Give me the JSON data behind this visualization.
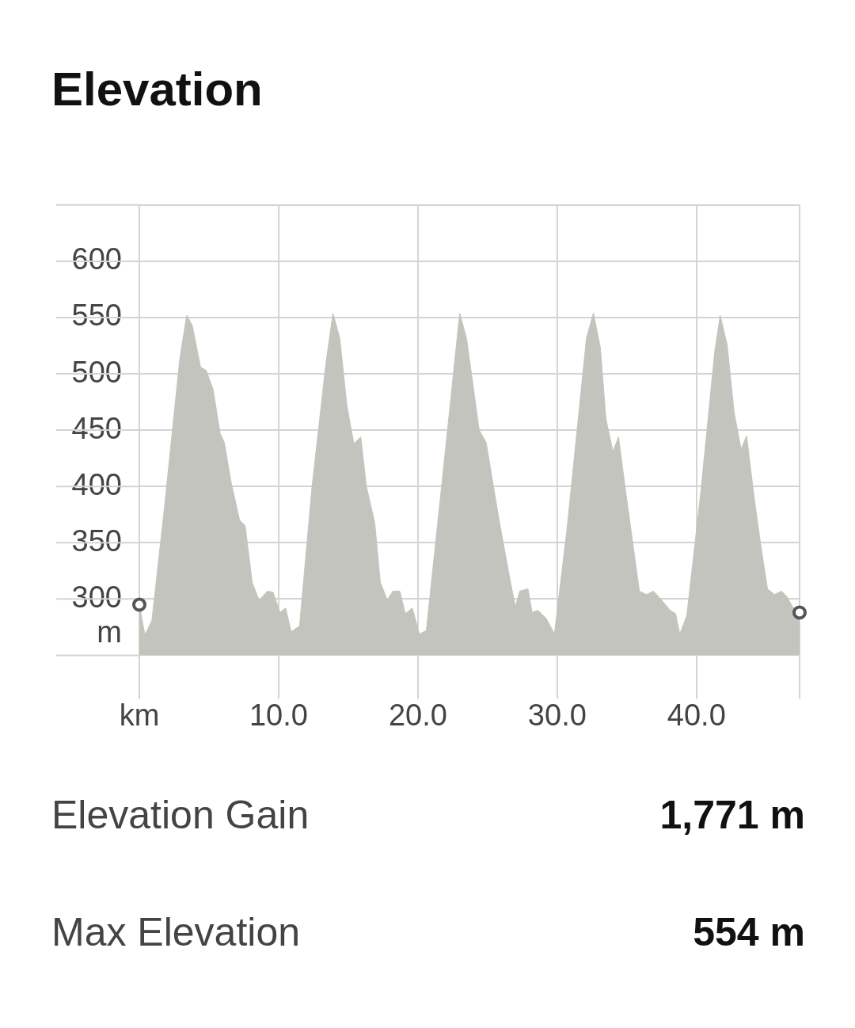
{
  "chart_data": {
    "type": "area",
    "title": "Elevation",
    "ylabel": "m",
    "x": [
      0,
      0.4,
      0.9,
      1.8,
      2.9,
      3.4,
      3.8,
      4.4,
      4.8,
      5.3,
      5.8,
      6.1,
      6.6,
      7.2,
      7.6,
      8.1,
      8.6,
      9.2,
      9.6,
      10.1,
      10.5,
      10.9,
      11.5,
      12.4,
      13.4,
      13.9,
      14.4,
      14.9,
      15.4,
      15.9,
      16.3,
      16.9,
      17.3,
      17.8,
      18.2,
      18.7,
      19.1,
      19.6,
      20.1,
      20.6,
      21.8,
      23.0,
      23.5,
      24.4,
      24.9,
      25.8,
      26.6,
      27.0,
      27.3,
      27.9,
      28.2,
      28.6,
      29.2,
      29.8,
      30.7,
      32.1,
      32.6,
      33.1,
      33.5,
      34.0,
      34.4,
      34.9,
      35.9,
      36.4,
      36.9,
      37.5,
      38.1,
      38.5,
      38.8,
      39.3,
      40.3,
      41.3,
      41.7,
      42.2,
      42.7,
      43.2,
      43.6,
      44.1,
      44.6,
      45.1,
      45.6,
      46.1,
      46.5,
      46.9,
      47.4
    ],
    "values": [
      295,
      268,
      281,
      381,
      513,
      552,
      543,
      506,
      503,
      486,
      447,
      439,
      403,
      370,
      365,
      315,
      299,
      307,
      306,
      288,
      292,
      271,
      276,
      400,
      510,
      554,
      531,
      472,
      438,
      444,
      400,
      368,
      315,
      299,
      307,
      307,
      287,
      292,
      269,
      272,
      412,
      554,
      531,
      450,
      439,
      372,
      318,
      293,
      307,
      309,
      288,
      290,
      283,
      269,
      362,
      532,
      554,
      523,
      460,
      431,
      444,
      397,
      307,
      304,
      307,
      299,
      290,
      287,
      269,
      285,
      394,
      519,
      552,
      526,
      466,
      433,
      445,
      394,
      349,
      309,
      304,
      307,
      302,
      293,
      288
    ],
    "color": "#c4c4bf",
    "xlim": [
      0,
      47.4
    ],
    "xticks": [
      {
        "value": 0,
        "label": "km"
      },
      {
        "value": 10,
        "label": "10.0"
      },
      {
        "value": 20,
        "label": "20.0"
      },
      {
        "value": 30,
        "label": "30.0"
      },
      {
        "value": 40,
        "label": "40.0"
      },
      {
        "value": 47.4,
        "label": null
      }
    ],
    "ylim": [
      250,
      650
    ],
    "yticks": [
      300,
      350,
      400,
      450,
      500,
      550,
      600,
      {
        "value": 650,
        "label": null
      }
    ],
    "grid": true,
    "annotations": [
      "Elevation Gain",
      "1,771 m",
      "Max Elevation",
      "554 m"
    ]
  }
}
